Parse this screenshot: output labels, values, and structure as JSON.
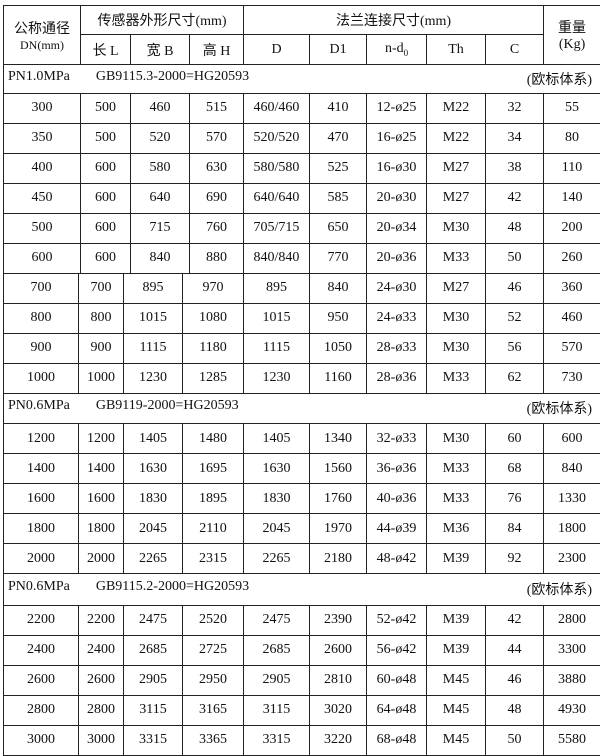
{
  "header": {
    "dn_label": "公称通径",
    "dn_unit": "DN(mm)",
    "sensor_group": "传感器外形尺寸(mm)",
    "flange_group": "法兰连接尺寸(mm)",
    "weight_label": "重量",
    "weight_unit": "(Kg)",
    "columns": [
      "长 L",
      "宽 B",
      "高 H",
      "D",
      "D1",
      "n-d",
      "Th",
      "C"
    ],
    "nd_subscript": "0"
  },
  "sections": [
    {
      "pressure": "PN1.0MPa",
      "standard": "GB9115.3-2000=HG20593",
      "system": "(欧标体系)",
      "rows": [
        [
          "300",
          "500",
          "460",
          "515",
          "460/460",
          "410",
          "12-ø25",
          "M22",
          "32",
          "55"
        ],
        [
          "350",
          "500",
          "520",
          "570",
          "520/520",
          "470",
          "16-ø25",
          "M22",
          "34",
          "80"
        ],
        [
          "400",
          "600",
          "580",
          "630",
          "580/580",
          "525",
          "16-ø30",
          "M27",
          "38",
          "110"
        ],
        [
          "450",
          "600",
          "640",
          "690",
          "640/640",
          "585",
          "20-ø30",
          "M27",
          "42",
          "140"
        ],
        [
          "500",
          "600",
          "715",
          "760",
          "705/715",
          "650",
          "20-ø34",
          "M30",
          "48",
          "200"
        ],
        [
          "600",
          "600",
          "840",
          "880",
          "840/840",
          "770",
          "20-ø36",
          "M33",
          "50",
          "260"
        ],
        [
          "700",
          "700",
          "895",
          "970",
          "895",
          "840",
          "24-ø30",
          "M27",
          "46",
          "360"
        ],
        [
          "800",
          "800",
          "1015",
          "1080",
          "1015",
          "950",
          "24-ø33",
          "M30",
          "52",
          "460"
        ],
        [
          "900",
          "900",
          "1115",
          "1180",
          "1115",
          "1050",
          "28-ø33",
          "M30",
          "56",
          "570"
        ],
        [
          "1000",
          "1000",
          "1230",
          "1285",
          "1230",
          "1160",
          "28-ø36",
          "M33",
          "62",
          "730"
        ]
      ]
    },
    {
      "pressure": "PN0.6MPa",
      "standard": "GB9119-2000=HG20593",
      "system": "(欧标体系)",
      "rows": [
        [
          "1200",
          "1200",
          "1405",
          "1480",
          "1405",
          "1340",
          "32-ø33",
          "M30",
          "60",
          "600"
        ],
        [
          "1400",
          "1400",
          "1630",
          "1695",
          "1630",
          "1560",
          "36-ø36",
          "M33",
          "68",
          "840"
        ],
        [
          "1600",
          "1600",
          "1830",
          "1895",
          "1830",
          "1760",
          "40-ø36",
          "M33",
          "76",
          "1330"
        ],
        [
          "1800",
          "1800",
          "2045",
          "2110",
          "2045",
          "1970",
          "44-ø39",
          "M36",
          "84",
          "1800"
        ],
        [
          "2000",
          "2000",
          "2265",
          "2315",
          "2265",
          "2180",
          "48-ø42",
          "M39",
          "92",
          "2300"
        ]
      ]
    },
    {
      "pressure": "PN0.6MPa",
      "standard": "GB9115.2-2000=HG20593",
      "system": "(欧标体系)",
      "rows": [
        [
          "2200",
          "2200",
          "2475",
          "2520",
          "2475",
          "2390",
          "52-ø42",
          "M39",
          "42",
          "2800"
        ],
        [
          "2400",
          "2400",
          "2685",
          "2725",
          "2685",
          "2600",
          "56-ø42",
          "M39",
          "44",
          "3300"
        ],
        [
          "2600",
          "2600",
          "2905",
          "2950",
          "2905",
          "2810",
          "60-ø48",
          "M45",
          "46",
          "3880"
        ],
        [
          "2800",
          "2800",
          "3115",
          "3165",
          "3115",
          "3020",
          "64-ø48",
          "M45",
          "48",
          "4930"
        ],
        [
          "3000",
          "3000",
          "3315",
          "3365",
          "3315",
          "3220",
          "68-ø48",
          "M45",
          "50",
          "5580"
        ]
      ]
    }
  ]
}
